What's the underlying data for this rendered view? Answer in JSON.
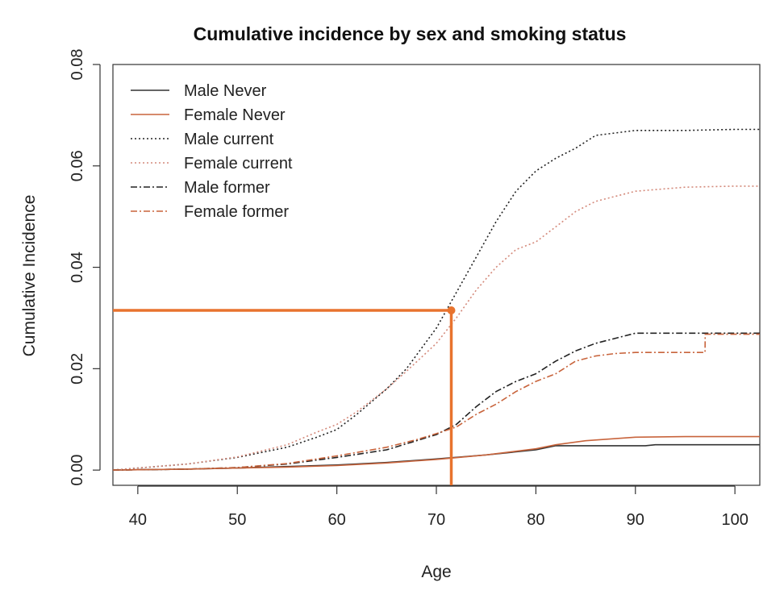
{
  "chart_data": {
    "type": "line",
    "title": "Cumulative incidence by sex and smoking status",
    "xlabel": "Age",
    "ylabel": "Cumulative Incidence",
    "xlim": [
      37.5,
      102.5
    ],
    "ylim": [
      -0.003,
      0.08
    ],
    "xticks": [
      40,
      50,
      60,
      70,
      80,
      90,
      100
    ],
    "xtick_labels": [
      "40",
      "50",
      "60",
      "70",
      "80",
      "90",
      "100"
    ],
    "yticks": [
      0.0,
      0.02,
      0.04,
      0.06,
      0.08
    ],
    "ytick_labels": [
      "0.00",
      "0.02",
      "0.04",
      "0.06",
      "0.08"
    ],
    "grid": false,
    "legend_position": "top-left",
    "series": [
      {
        "name": "Male Never",
        "color": "#333333",
        "dash": "solid",
        "x": [
          37.5,
          45,
          50,
          55,
          60,
          65,
          70,
          75,
          80,
          82,
          85,
          88,
          91,
          92,
          95,
          100,
          102.5
        ],
        "y": [
          0,
          0.0002,
          0.0004,
          0.0007,
          0.001,
          0.0015,
          0.0022,
          0.003,
          0.004,
          0.0048,
          0.0048,
          0.0048,
          0.0048,
          0.005,
          0.005,
          0.005,
          0.005
        ]
      },
      {
        "name": "Female Never",
        "color": "#c8643c",
        "dash": "solid",
        "x": [
          37.5,
          45,
          50,
          55,
          60,
          65,
          70,
          75,
          80,
          82,
          85,
          88,
          90,
          95,
          100,
          102.5
        ],
        "y": [
          0,
          0.0002,
          0.0004,
          0.0006,
          0.0009,
          0.0014,
          0.0021,
          0.003,
          0.0042,
          0.005,
          0.0058,
          0.0062,
          0.0065,
          0.0066,
          0.0066,
          0.0066
        ]
      },
      {
        "name": "Male current",
        "color": "#222222",
        "dash": "dotted",
        "x": [
          37.5,
          45,
          50,
          55,
          58,
          60,
          62,
          65,
          67,
          70,
          72,
          74,
          76,
          78,
          80,
          82,
          84,
          86,
          88,
          90,
          95,
          100,
          102.5
        ],
        "y": [
          0,
          0.0012,
          0.0025,
          0.0045,
          0.0065,
          0.008,
          0.011,
          0.016,
          0.02,
          0.028,
          0.035,
          0.042,
          0.049,
          0.055,
          0.059,
          0.0615,
          0.0635,
          0.066,
          0.0665,
          0.067,
          0.067,
          0.0672,
          0.0672
        ]
      },
      {
        "name": "Female current",
        "color": "#d4897a",
        "dash": "dotted",
        "x": [
          37.5,
          45,
          50,
          55,
          58,
          60,
          62,
          65,
          67,
          70,
          72,
          74,
          76,
          78,
          80,
          82,
          84,
          86,
          88,
          90,
          95,
          100,
          102.5
        ],
        "y": [
          0,
          0.0012,
          0.0026,
          0.005,
          0.0075,
          0.009,
          0.0115,
          0.016,
          0.0195,
          0.025,
          0.03,
          0.0355,
          0.04,
          0.0435,
          0.045,
          0.048,
          0.051,
          0.053,
          0.054,
          0.055,
          0.0558,
          0.056,
          0.056
        ]
      },
      {
        "name": "Male former",
        "color": "#222222",
        "dash": "dashdot",
        "x": [
          37.5,
          45,
          50,
          55,
          60,
          65,
          68,
          70,
          72,
          74,
          76,
          78,
          80,
          82,
          84,
          86,
          88,
          90,
          95,
          100,
          102.5
        ],
        "y": [
          0,
          0.0002,
          0.0005,
          0.0012,
          0.0025,
          0.004,
          0.0058,
          0.007,
          0.009,
          0.0125,
          0.0155,
          0.0175,
          0.019,
          0.0215,
          0.0235,
          0.025,
          0.026,
          0.027,
          0.027,
          0.027,
          0.027
        ]
      },
      {
        "name": "Female former",
        "color": "#c8643c",
        "dash": "dashdot",
        "x": [
          37.5,
          45,
          50,
          55,
          60,
          65,
          68,
          70,
          72,
          74,
          76,
          78,
          80,
          82,
          84,
          86,
          88,
          90,
          95,
          97,
          97.01,
          100,
          102.5
        ],
        "y": [
          0,
          0.0002,
          0.0005,
          0.0013,
          0.0028,
          0.0045,
          0.006,
          0.0072,
          0.0085,
          0.011,
          0.013,
          0.0155,
          0.0175,
          0.019,
          0.0215,
          0.0225,
          0.023,
          0.0232,
          0.0232,
          0.0232,
          0.0268,
          0.0268,
          0.0268
        ]
      }
    ],
    "annotations": [
      {
        "type": "highlight-crosshair",
        "color": "#e8732e",
        "x": 71.5,
        "y": 0.0315
      }
    ]
  }
}
